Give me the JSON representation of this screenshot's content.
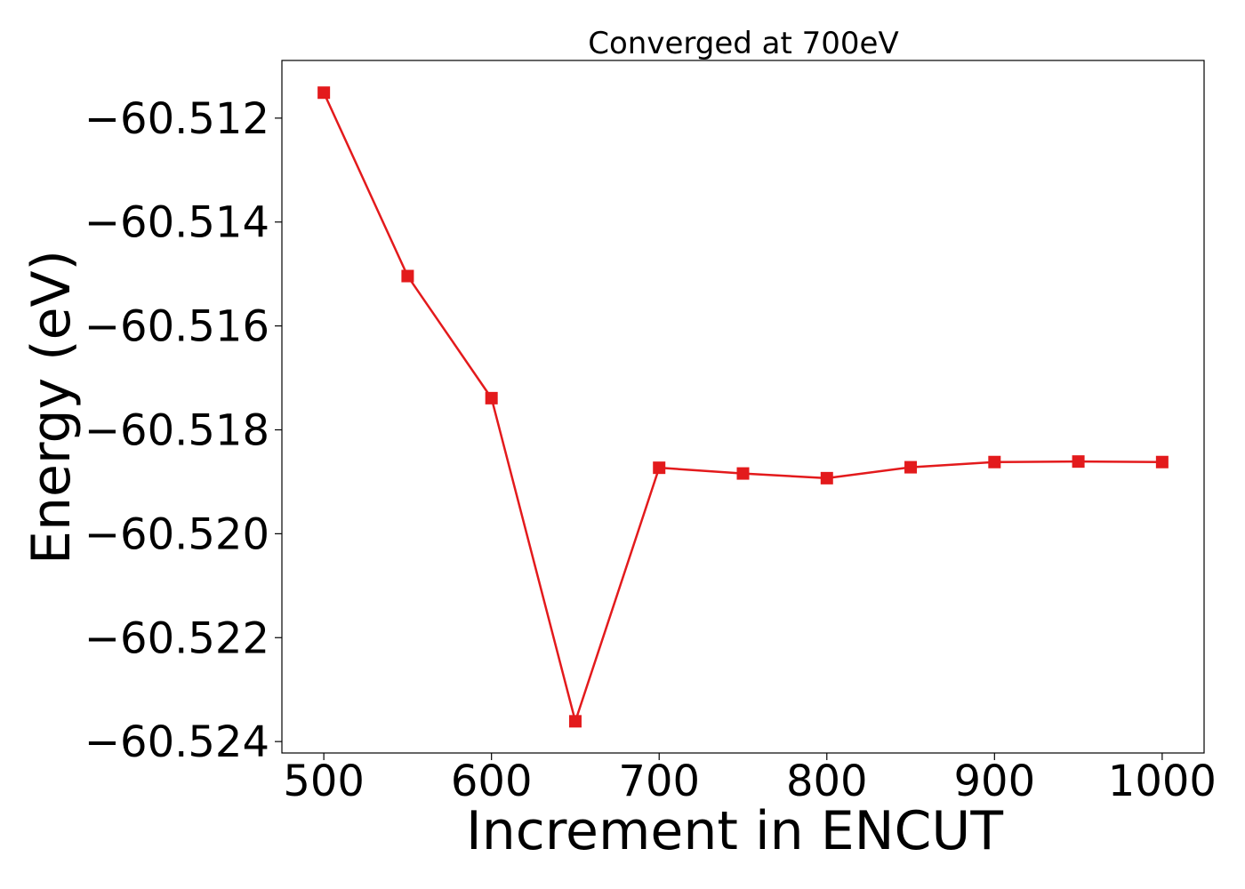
{
  "chart_data": {
    "type": "line",
    "title": "Converged at 700eV",
    "xlabel": "Increment in ENCUT",
    "ylabel": "Energy (eV)",
    "xlim": [
      475,
      1025
    ],
    "ylim": [
      -60.52422,
      -60.51089
    ],
    "x_ticks": [
      500,
      600,
      700,
      800,
      900,
      1000
    ],
    "x_tick_labels": [
      "500",
      "600",
      "700",
      "800",
      "900",
      "1000"
    ],
    "y_ticks": [
      -60.512,
      -60.514,
      -60.516,
      -60.518,
      -60.52,
      -60.522,
      -60.524
    ],
    "y_tick_labels": [
      "−60.512",
      "−60.514",
      "−60.516",
      "−60.518",
      "−60.520",
      "−60.522",
      "−60.524"
    ],
    "grid": false,
    "series": [
      {
        "color": "#e31a1c",
        "marker": "square",
        "x": [
          500,
          550,
          600,
          650,
          700,
          750,
          800,
          850,
          900,
          950,
          1000
        ],
        "y": [
          -60.51151,
          -60.51504,
          -60.51739,
          -60.52361,
          -60.51873,
          -60.51884,
          -60.51893,
          -60.51872,
          -60.51862,
          -60.51861,
          -60.51862
        ]
      }
    ]
  }
}
